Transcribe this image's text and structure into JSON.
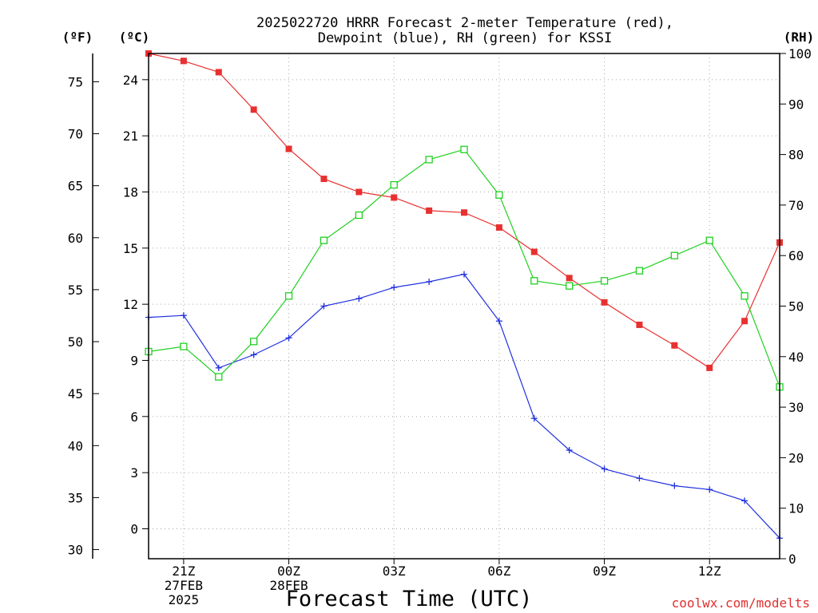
{
  "chart_data": {
    "type": "line",
    "title_line1": "2025022720 HRRR Forecast 2-meter Temperature (red),",
    "title_line2": "Dewpoint (blue), RH (green) for KSSI",
    "xlabel": "Forecast Time (UTC)",
    "credit": "coolwx.com/modelts",
    "units": {
      "fahrenheit": "(ºF)",
      "celsius": "(ºC)",
      "rh": "(RH)"
    },
    "x_hours_from_20Z": [
      0,
      1,
      2,
      3,
      4,
      5,
      6,
      7,
      8,
      9,
      10,
      11,
      12,
      13,
      14,
      15,
      16,
      17,
      18
    ],
    "x_ticks": [
      {
        "hour": 1,
        "lines": [
          "21Z",
          "27FEB",
          "2025"
        ]
      },
      {
        "hour": 4,
        "lines": [
          "00Z",
          "28FEB"
        ]
      },
      {
        "hour": 7,
        "lines": [
          "03Z"
        ]
      },
      {
        "hour": 10,
        "lines": [
          "06Z"
        ]
      },
      {
        "hour": 13,
        "lines": [
          "09Z"
        ]
      },
      {
        "hour": 16,
        "lines": [
          "12Z"
        ]
      }
    ],
    "y_celsius_range": [
      -1.6,
      25.4
    ],
    "y_celsius_ticks": [
      "0",
      "3",
      "6",
      "9",
      "12",
      "15",
      "18",
      "21",
      "24"
    ],
    "y_fahrenheit_ticks": [
      "30",
      "35",
      "40",
      "45",
      "50",
      "55",
      "60",
      "65",
      "70",
      "75"
    ],
    "y_rh_range": [
      0,
      100
    ],
    "y_rh_ticks": [
      "0",
      "10",
      "20",
      "30",
      "40",
      "50",
      "60",
      "70",
      "80",
      "90",
      "100"
    ],
    "grid": true,
    "series": [
      {
        "name": "Temperature",
        "color": "#e83030",
        "marker": "filled-square",
        "axis": "celsius",
        "values": [
          25.4,
          25.0,
          24.4,
          22.4,
          20.3,
          18.7,
          18.0,
          17.7,
          17.0,
          16.9,
          16.1,
          14.8,
          13.4,
          12.1,
          10.9,
          9.8,
          8.6,
          11.1,
          15.3
        ]
      },
      {
        "name": "Dewpoint",
        "color": "#2030e0",
        "marker": "plus",
        "axis": "celsius",
        "values": [
          11.3,
          11.4,
          8.6,
          9.3,
          10.2,
          11.9,
          12.3,
          12.9,
          13.2,
          13.6,
          11.1,
          5.9,
          4.2,
          3.2,
          2.7,
          2.3,
          2.1,
          1.5,
          -0.5
        ]
      },
      {
        "name": "RH",
        "color": "#20d020",
        "marker": "open-square",
        "axis": "rh",
        "values": [
          41,
          42,
          36,
          43,
          52,
          63,
          68,
          74,
          79,
          81,
          72,
          55,
          54,
          55,
          57,
          60,
          63,
          52,
          34
        ]
      }
    ]
  }
}
